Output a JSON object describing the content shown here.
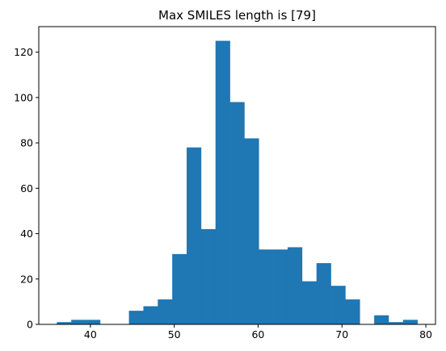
{
  "chart_data": {
    "type": "bar",
    "title": "Max SMILES length is [79]",
    "xlabel": "",
    "ylabel": "",
    "xlim": [
      33.85,
      81.15
    ],
    "ylim": [
      0,
      131.25
    ],
    "x_ticks": [
      40,
      50,
      60,
      70,
      80
    ],
    "y_ticks": [
      0,
      20,
      40,
      60,
      80,
      100,
      120
    ],
    "bin_edges": [
      36.0,
      37.72,
      39.44,
      41.16,
      42.88,
      44.6,
      46.32,
      48.04,
      49.76,
      51.48,
      53.2,
      54.92,
      56.64,
      58.36,
      60.08,
      61.8,
      63.52,
      65.24,
      66.96,
      68.68,
      70.4,
      72.12,
      73.84,
      75.56,
      77.28,
      79.0
    ],
    "counts": [
      1,
      2,
      2,
      0,
      0,
      6,
      8,
      11,
      31,
      78,
      42,
      125,
      98,
      82,
      33,
      33,
      34,
      19,
      27,
      17,
      11,
      0,
      4,
      1,
      2
    ],
    "bar_color": "#1f77b4",
    "grid": false,
    "legend": "none"
  }
}
